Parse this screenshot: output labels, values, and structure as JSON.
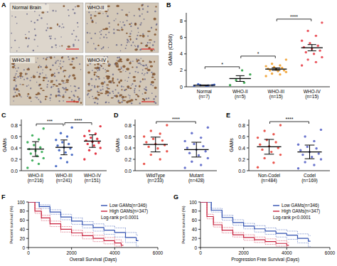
{
  "image_panel": {
    "panel": "A",
    "labels": [
      "Normal Brain",
      "WHO-II",
      "WHO-III",
      "WHO-IV"
    ]
  },
  "chart_data": [
    {
      "panel": "B",
      "type": "dot",
      "y_label": "GAMs (CD68)",
      "categories": [
        "Normal\n(n=7)",
        "WHO-II\n(n=5)",
        "WHO-III\n(n=15)",
        "WHO-IV\n(n=15)"
      ],
      "colors": [
        "#3a5fcd",
        "#2e9e44",
        "#f0a030",
        "#e8404a"
      ],
      "marker": "circle",
      "values": [
        [
          0.1,
          0.15,
          0.2,
          0.25,
          0.1,
          0.3,
          0.2
        ],
        [
          0.2,
          0.5,
          0.8,
          1.5,
          2.0
        ],
        [
          1.3,
          1.5,
          1.6,
          1.8,
          1.9,
          2.0,
          2.0,
          2.1,
          2.2,
          2.3,
          2.4,
          2.5,
          2.6,
          2.8,
          3.3
        ],
        [
          2.6,
          3.0,
          3.3,
          3.6,
          4.0,
          4.2,
          4.4,
          4.6,
          4.8,
          5.0,
          5.3,
          5.6,
          6.2,
          6.8,
          7.8
        ]
      ],
      "means": [
        0.19,
        1.0,
        2.15,
        4.75
      ],
      "errors": [
        0.03,
        0.35,
        0.14,
        0.38
      ],
      "ylim": [
        0,
        9
      ],
      "yticks": [
        0,
        2,
        4,
        6,
        8
      ],
      "brackets": [
        {
          "from": 0,
          "to": 1,
          "label": "*"
        },
        {
          "from": 1,
          "to": 2,
          "label": "*"
        },
        {
          "from": 2,
          "to": 3,
          "label": "****"
        }
      ]
    },
    {
      "panel": "C",
      "type": "dot",
      "y_label": "GAMs",
      "categories": [
        "WHO-II\n(n=216)",
        "WHO-III\n(n=241)",
        "WHO-IV\n(n=151)"
      ],
      "colors": [
        "#2fa84f",
        "#3b5fc0",
        "#e02030"
      ],
      "marker": "circle",
      "values": [
        [
          0.05,
          0.12,
          0.18,
          0.22,
          0.26,
          0.3,
          0.33,
          0.35,
          0.38,
          0.41,
          0.45,
          0.5,
          0.55,
          0.62,
          0.74
        ],
        [
          0.08,
          0.15,
          0.22,
          0.28,
          0.32,
          0.36,
          0.39,
          0.41,
          0.44,
          0.47,
          0.5,
          0.54,
          0.6,
          0.66,
          0.76
        ],
        [
          0.2,
          0.3,
          0.36,
          0.4,
          0.44,
          0.47,
          0.49,
          0.51,
          0.53,
          0.56,
          0.58,
          0.61,
          0.65,
          0.7,
          0.78
        ]
      ],
      "means": [
        0.38,
        0.41,
        0.52
      ],
      "errors": [
        0.13,
        0.13,
        0.11
      ],
      "ylim": [
        0,
        0.9
      ],
      "yticks": [
        {
          "value": 0,
          "label": "0.0"
        },
        0.2,
        0.4,
        0.6,
        0.8
      ],
      "brackets": [
        {
          "from": 0,
          "to": 1,
          "label": "***"
        },
        {
          "from": 1,
          "to": 2,
          "label": "****"
        }
      ]
    },
    {
      "panel": "D",
      "type": "dot",
      "y_label": "GAMs",
      "categories": [
        "WildType\n(n=233)",
        "Mutant\n(n=428)"
      ],
      "colors": [
        "#e8453c",
        "#5a66c8"
      ],
      "marker": "circle",
      "values": [
        [
          0.12,
          0.2,
          0.28,
          0.34,
          0.39,
          0.42,
          0.45,
          0.47,
          0.5,
          0.53,
          0.56,
          0.6,
          0.65,
          0.7,
          0.8
        ],
        [
          0.05,
          0.1,
          0.16,
          0.22,
          0.27,
          0.31,
          0.34,
          0.37,
          0.4,
          0.43,
          0.47,
          0.52,
          0.58,
          0.66,
          0.76
        ]
      ],
      "means": [
        0.46,
        0.37
      ],
      "errors": [
        0.13,
        0.13
      ],
      "ylim": [
        0,
        0.9
      ],
      "yticks": [
        {
          "value": 0,
          "label": "0.0"
        },
        0.2,
        0.4,
        0.6,
        0.8
      ],
      "brackets": [
        {
          "from": 0,
          "to": 1,
          "label": "****"
        }
      ]
    },
    {
      "panel": "E",
      "type": "dot",
      "y_label": "GAMs",
      "categories": [
        "Non-Codel\n(n=484)",
        "Codel\n(n=169)"
      ],
      "colors": [
        "#e8453c",
        "#5a66c8"
      ],
      "marker": "circle",
      "values": [
        [
          0.06,
          0.14,
          0.22,
          0.28,
          0.33,
          0.37,
          0.4,
          0.43,
          0.46,
          0.5,
          0.54,
          0.58,
          0.64,
          0.7,
          0.8
        ],
        [
          0.04,
          0.1,
          0.15,
          0.2,
          0.24,
          0.28,
          0.3,
          0.33,
          0.36,
          0.39,
          0.42,
          0.46,
          0.52,
          0.6,
          0.72
        ]
      ],
      "means": [
        0.42,
        0.33
      ],
      "errors": [
        0.13,
        0.12
      ],
      "ylim": [
        0,
        0.9
      ],
      "yticks": [
        {
          "value": 0,
          "label": "0.0"
        },
        0.2,
        0.4,
        0.6,
        0.8
      ],
      "brackets": [
        {
          "from": 0,
          "to": 1,
          "label": "****"
        }
      ]
    },
    {
      "panel": "F",
      "type": "survival",
      "x_label": "Overall Survival (Days)",
      "y_label": "Percent survival (%)",
      "annotation": "Log-rank p<0.0001",
      "legend": "upper right",
      "xlim": [
        0,
        6000
      ],
      "xticks": [
        0,
        2000,
        4000,
        6000
      ],
      "ylim": [
        0,
        100
      ],
      "yticks": [
        0,
        20,
        40,
        60,
        80,
        100
      ],
      "series": [
        {
          "name": "Low GAMs(n=346)",
          "color": "#3050b0",
          "x": [
            0,
            500,
            1000,
            1500,
            2000,
            2500,
            3000,
            3500,
            4000,
            4500,
            5000
          ],
          "values": [
            100,
            90,
            78,
            67,
            58,
            50,
            44,
            38,
            33,
            22,
            15
          ],
          "lower": [
            100,
            86,
            73,
            61,
            51,
            43,
            36,
            29,
            23,
            11,
            3
          ],
          "upper": [
            100,
            94,
            83,
            73,
            65,
            57,
            52,
            47,
            43,
            33,
            27
          ]
        },
        {
          "name": "High GAMs(n=347)",
          "color": "#c8203c",
          "x": [
            0,
            300,
            600,
            1000,
            1500,
            2000,
            2500,
            3000,
            3500,
            4000,
            4300
          ],
          "values": [
            100,
            80,
            65,
            52,
            40,
            32,
            26,
            20,
            15,
            10,
            5
          ],
          "lower": [
            100,
            75,
            59,
            46,
            34,
            26,
            19,
            13,
            8,
            3,
            0
          ],
          "upper": [
            100,
            85,
            71,
            58,
            46,
            38,
            33,
            27,
            22,
            17,
            12
          ]
        }
      ]
    },
    {
      "panel": "G",
      "type": "survival",
      "x_label": "Progression Free Survival (Days)",
      "y_label": "Percent survival (%)",
      "annotation": "Log-rank p<0.0001",
      "legend": "upper right",
      "xlim": [
        0,
        6000
      ],
      "xticks": [
        0,
        2000,
        4000,
        6000
      ],
      "ylim": [
        0,
        100
      ],
      "yticks": [
        0,
        20,
        40,
        60,
        80,
        100
      ],
      "series": [
        {
          "name": "Low GAMs(n=346)",
          "color": "#3050b0",
          "x": [
            0,
            500,
            1000,
            1500,
            2000,
            2500,
            3000,
            3500,
            4000,
            4500,
            5000
          ],
          "values": [
            100,
            82,
            66,
            55,
            47,
            41,
            36,
            31,
            27,
            20,
            14
          ],
          "lower": [
            100,
            78,
            60,
            49,
            41,
            34,
            29,
            23,
            18,
            10,
            2
          ],
          "upper": [
            100,
            86,
            71,
            61,
            53,
            48,
            43,
            39,
            36,
            30,
            26
          ]
        },
        {
          "name": "High GAMs(n=347)",
          "color": "#c8203c",
          "x": [
            0,
            300,
            600,
            1000,
            1500,
            2000,
            2500,
            3000,
            3500,
            4000
          ],
          "values": [
            100,
            68,
            50,
            38,
            28,
            22,
            17,
            13,
            9,
            5
          ],
          "lower": [
            100,
            63,
            45,
            32,
            23,
            16,
            11,
            7,
            3,
            0
          ],
          "upper": [
            100,
            73,
            55,
            44,
            33,
            28,
            23,
            19,
            15,
            11
          ]
        }
      ]
    }
  ]
}
